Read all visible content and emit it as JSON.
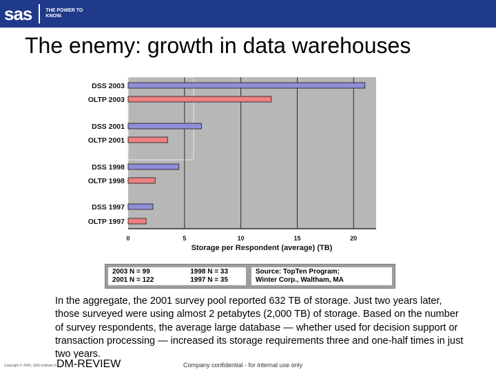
{
  "header": {
    "logo_text": "sas",
    "logo_tagline": "THE POWER TO KNOW.",
    "brand_color": "#1f3a8a"
  },
  "slide": {
    "title": "The enemy: growth in data warehouses",
    "body": "In the aggregate, the 2001 survey pool reported 632 TB of storage. Just two years later, those surveyed were using almost 2 petabytes (2,000 TB) of storage. Based on the number of survey respondents, the average large database — whether used for decision support or transaction processing — increased its storage requirements three and one-half times in just two years.",
    "source_label": "DM-REVIEW"
  },
  "footer": {
    "copyright": "Copyright © 2006, SAS Institute Inc. All rights reserved.",
    "confidential": "Company confidential - for internal use only"
  },
  "chart_data": {
    "type": "bar",
    "orientation": "horizontal",
    "categories": [
      "DSS 2003",
      "OLTP 2003",
      "DSS 2001",
      "OLTP 2001",
      "DSS 1998",
      "OLTP 1998",
      "DSS 1997",
      "OLTP 1997"
    ],
    "values": [
      21,
      12.7,
      6.5,
      3.5,
      4.5,
      2.4,
      2.2,
      1.6
    ],
    "series_colors": [
      "#8e8ed8",
      "#f08080",
      "#8e8ed8",
      "#f08080",
      "#8e8ed8",
      "#f08080",
      "#8e8ed8",
      "#f08080"
    ],
    "xlabel": "Storage per Respondent (average) (TB)",
    "xlim": [
      0,
      22
    ],
    "xticks": [
      0,
      5,
      10,
      15,
      20
    ],
    "grid": true,
    "legend": {
      "counts": [
        [
          "2003 N = 99",
          "1998 N = 33"
        ],
        [
          "2001 N = 122",
          "1997 N = 35"
        ]
      ],
      "source_lines": [
        "Source: TopTen Program;",
        "Winter Corp., Waltham, MA"
      ]
    }
  }
}
